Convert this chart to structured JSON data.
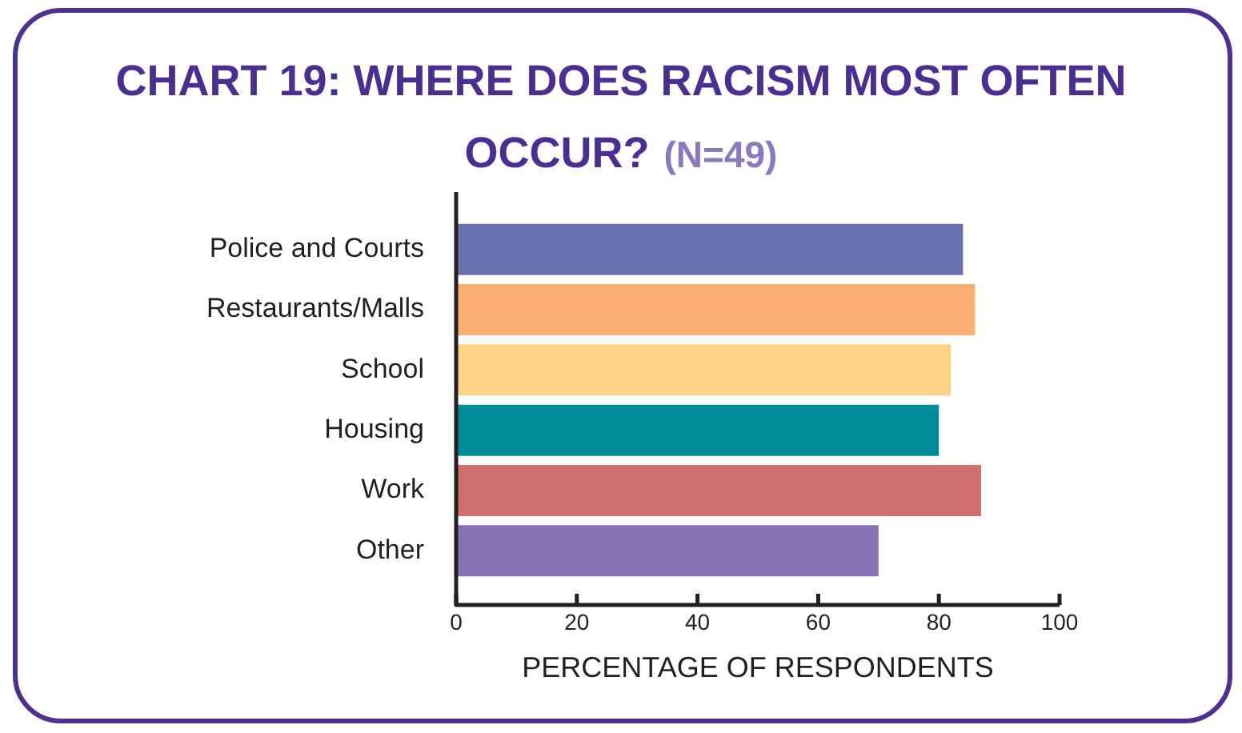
{
  "chart_data": {
    "type": "bar",
    "orientation": "horizontal",
    "title": "CHART 19: WHERE DOES RACISM MOST OFTEN OCCUR? (N=49)",
    "categories": [
      "Police and Courts",
      "Restaurants/Malls",
      "School",
      "Housing",
      "Work",
      "Other"
    ],
    "values": [
      84,
      86,
      82,
      80,
      87,
      70
    ],
    "colors": [
      "#6b72b0",
      "#f9af74",
      "#fdd387",
      "#008b98",
      "#cf706f",
      "#8673b5"
    ],
    "xlim": [
      0,
      100
    ],
    "xticks": [
      0,
      20,
      40,
      60,
      80,
      100
    ],
    "xlabel": "PERCENTAGE OF RESPONDENTS",
    "grid": false,
    "legend": false
  }
}
